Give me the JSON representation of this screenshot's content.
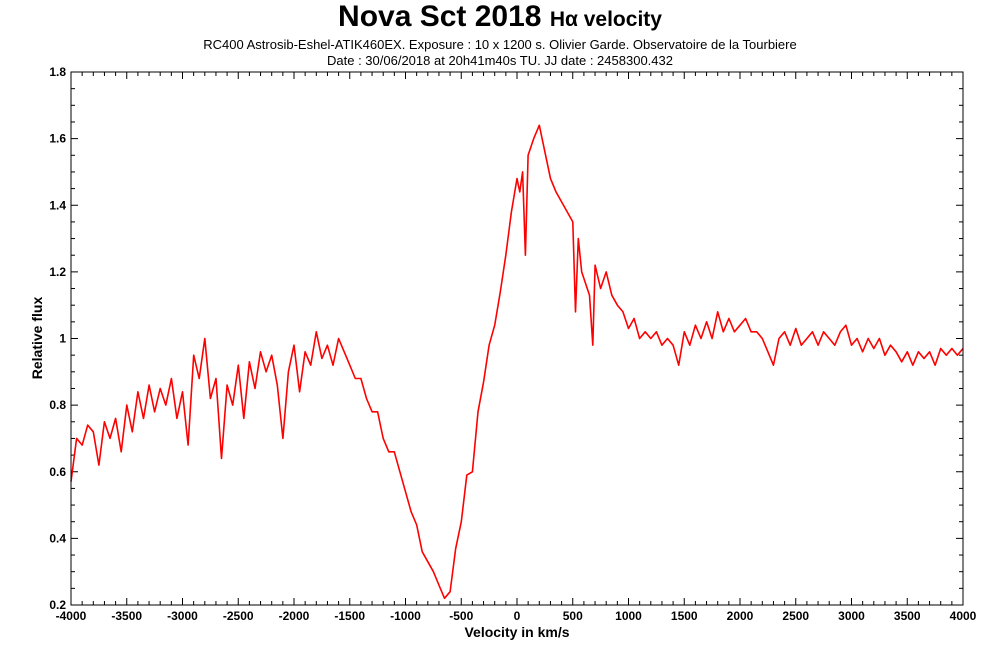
{
  "chart_data": {
    "type": "line",
    "title": "Nova Sct 2018",
    "title_suffix": "Hα velocity",
    "subtitle_lines": [
      "RC400 Astrosib-Eshel-ATIK460EX. Exposure : 10 x 1200 s. Olivier Garde. Observatoire de la Tourbiere",
      "Date : 30/06/2018 at 20h41m40s TU. JJ date : 2458300.432"
    ],
    "xlabel": "Velocity in km/s",
    "ylabel": "Relative flux",
    "xlim": [
      -4000,
      4000
    ],
    "ylim": [
      0.2,
      1.8
    ],
    "xticks": [
      "-4000",
      "-3500",
      "-3000",
      "-2500",
      "-2000",
      "-1500",
      "-1000",
      "-500",
      "0",
      "500",
      "1000",
      "1500",
      "2000",
      "2500",
      "3000",
      "3500",
      "4000"
    ],
    "yticks": [
      "0.2",
      "0.4",
      "0.6",
      "0.8",
      "1",
      "1.2",
      "1.4",
      "1.6",
      "1.8"
    ],
    "grid": false,
    "series_color": "#ff0000",
    "series": [
      {
        "x": [
          -4000,
          -3950,
          -3900,
          -3850,
          -3800,
          -3750,
          -3700,
          -3650,
          -3600,
          -3550,
          -3500,
          -3450,
          -3400,
          -3350,
          -3300,
          -3250,
          -3200,
          -3150,
          -3100,
          -3050,
          -3000,
          -2950,
          -2900,
          -2850,
          -2800,
          -2750,
          -2700,
          -2650,
          -2600,
          -2550,
          -2500,
          -2450,
          -2400,
          -2350,
          -2300,
          -2250,
          -2200,
          -2150,
          -2100,
          -2050,
          -2000,
          -1950,
          -1900,
          -1850,
          -1800,
          -1750,
          -1700,
          -1650,
          -1600,
          -1550,
          -1500,
          -1450,
          -1400,
          -1350,
          -1300,
          -1250,
          -1200,
          -1150,
          -1100,
          -1050,
          -1000,
          -950,
          -900,
          -850,
          -800,
          -750,
          -700,
          -650,
          -600,
          -550,
          -500,
          -450,
          -400,
          -350,
          -300,
          -250,
          -200,
          -150,
          -100,
          -50,
          0,
          25,
          50,
          75,
          100,
          150,
          200,
          250,
          300,
          350,
          400,
          450,
          500,
          525,
          550,
          580,
          650,
          680,
          700,
          750,
          800,
          850,
          900,
          950,
          1000,
          1050,
          1100,
          1150,
          1200,
          1250,
          1300,
          1350,
          1400,
          1450,
          1500,
          1550,
          1600,
          1650,
          1700,
          1750,
          1800,
          1850,
          1900,
          1950,
          2000,
          2050,
          2100,
          2150,
          2200,
          2250,
          2300,
          2350,
          2400,
          2450,
          2500,
          2550,
          2600,
          2650,
          2700,
          2750,
          2800,
          2850,
          2900,
          2950,
          3000,
          3050,
          3100,
          3150,
          3200,
          3250,
          3300,
          3350,
          3400,
          3450,
          3500,
          3550,
          3600,
          3650,
          3700,
          3750,
          3800,
          3850,
          3900,
          3950,
          4000
        ],
        "y": [
          0.57,
          0.7,
          0.68,
          0.74,
          0.72,
          0.62,
          0.75,
          0.7,
          0.76,
          0.66,
          0.8,
          0.72,
          0.84,
          0.76,
          0.86,
          0.78,
          0.85,
          0.8,
          0.88,
          0.76,
          0.84,
          0.68,
          0.95,
          0.88,
          1.0,
          0.82,
          0.88,
          0.64,
          0.86,
          0.8,
          0.92,
          0.76,
          0.93,
          0.85,
          0.96,
          0.9,
          0.95,
          0.86,
          0.7,
          0.9,
          0.98,
          0.84,
          0.96,
          0.92,
          1.02,
          0.94,
          0.98,
          0.92,
          1.0,
          0.96,
          0.92,
          0.88,
          0.88,
          0.82,
          0.78,
          0.78,
          0.7,
          0.66,
          0.66,
          0.6,
          0.54,
          0.48,
          0.44,
          0.36,
          0.33,
          0.3,
          0.26,
          0.22,
          0.24,
          0.37,
          0.45,
          0.59,
          0.6,
          0.78,
          0.87,
          0.98,
          1.04,
          1.14,
          1.25,
          1.38,
          1.48,
          1.44,
          1.5,
          1.25,
          1.55,
          1.6,
          1.64,
          1.56,
          1.48,
          1.44,
          1.41,
          1.38,
          1.35,
          1.08,
          1.3,
          1.2,
          1.13,
          0.98,
          1.22,
          1.15,
          1.2,
          1.13,
          1.1,
          1.08,
          1.03,
          1.06,
          1.0,
          1.02,
          1.0,
          1.02,
          0.98,
          1.0,
          0.98,
          0.92,
          1.02,
          0.98,
          1.04,
          1.0,
          1.05,
          1.0,
          1.08,
          1.02,
          1.06,
          1.02,
          1.04,
          1.06,
          1.02,
          1.02,
          1.0,
          0.96,
          0.92,
          1.0,
          1.02,
          0.98,
          1.03,
          0.98,
          1.0,
          1.02,
          0.98,
          1.02,
          1.0,
          0.98,
          1.02,
          1.04,
          0.98,
          1.0,
          0.96,
          1.0,
          0.97,
          1.0,
          0.95,
          0.98,
          0.96,
          0.93,
          0.96,
          0.92,
          0.96,
          0.94,
          0.96,
          0.92,
          0.97,
          0.95,
          0.97,
          0.95,
          0.97
        ]
      }
    ]
  }
}
